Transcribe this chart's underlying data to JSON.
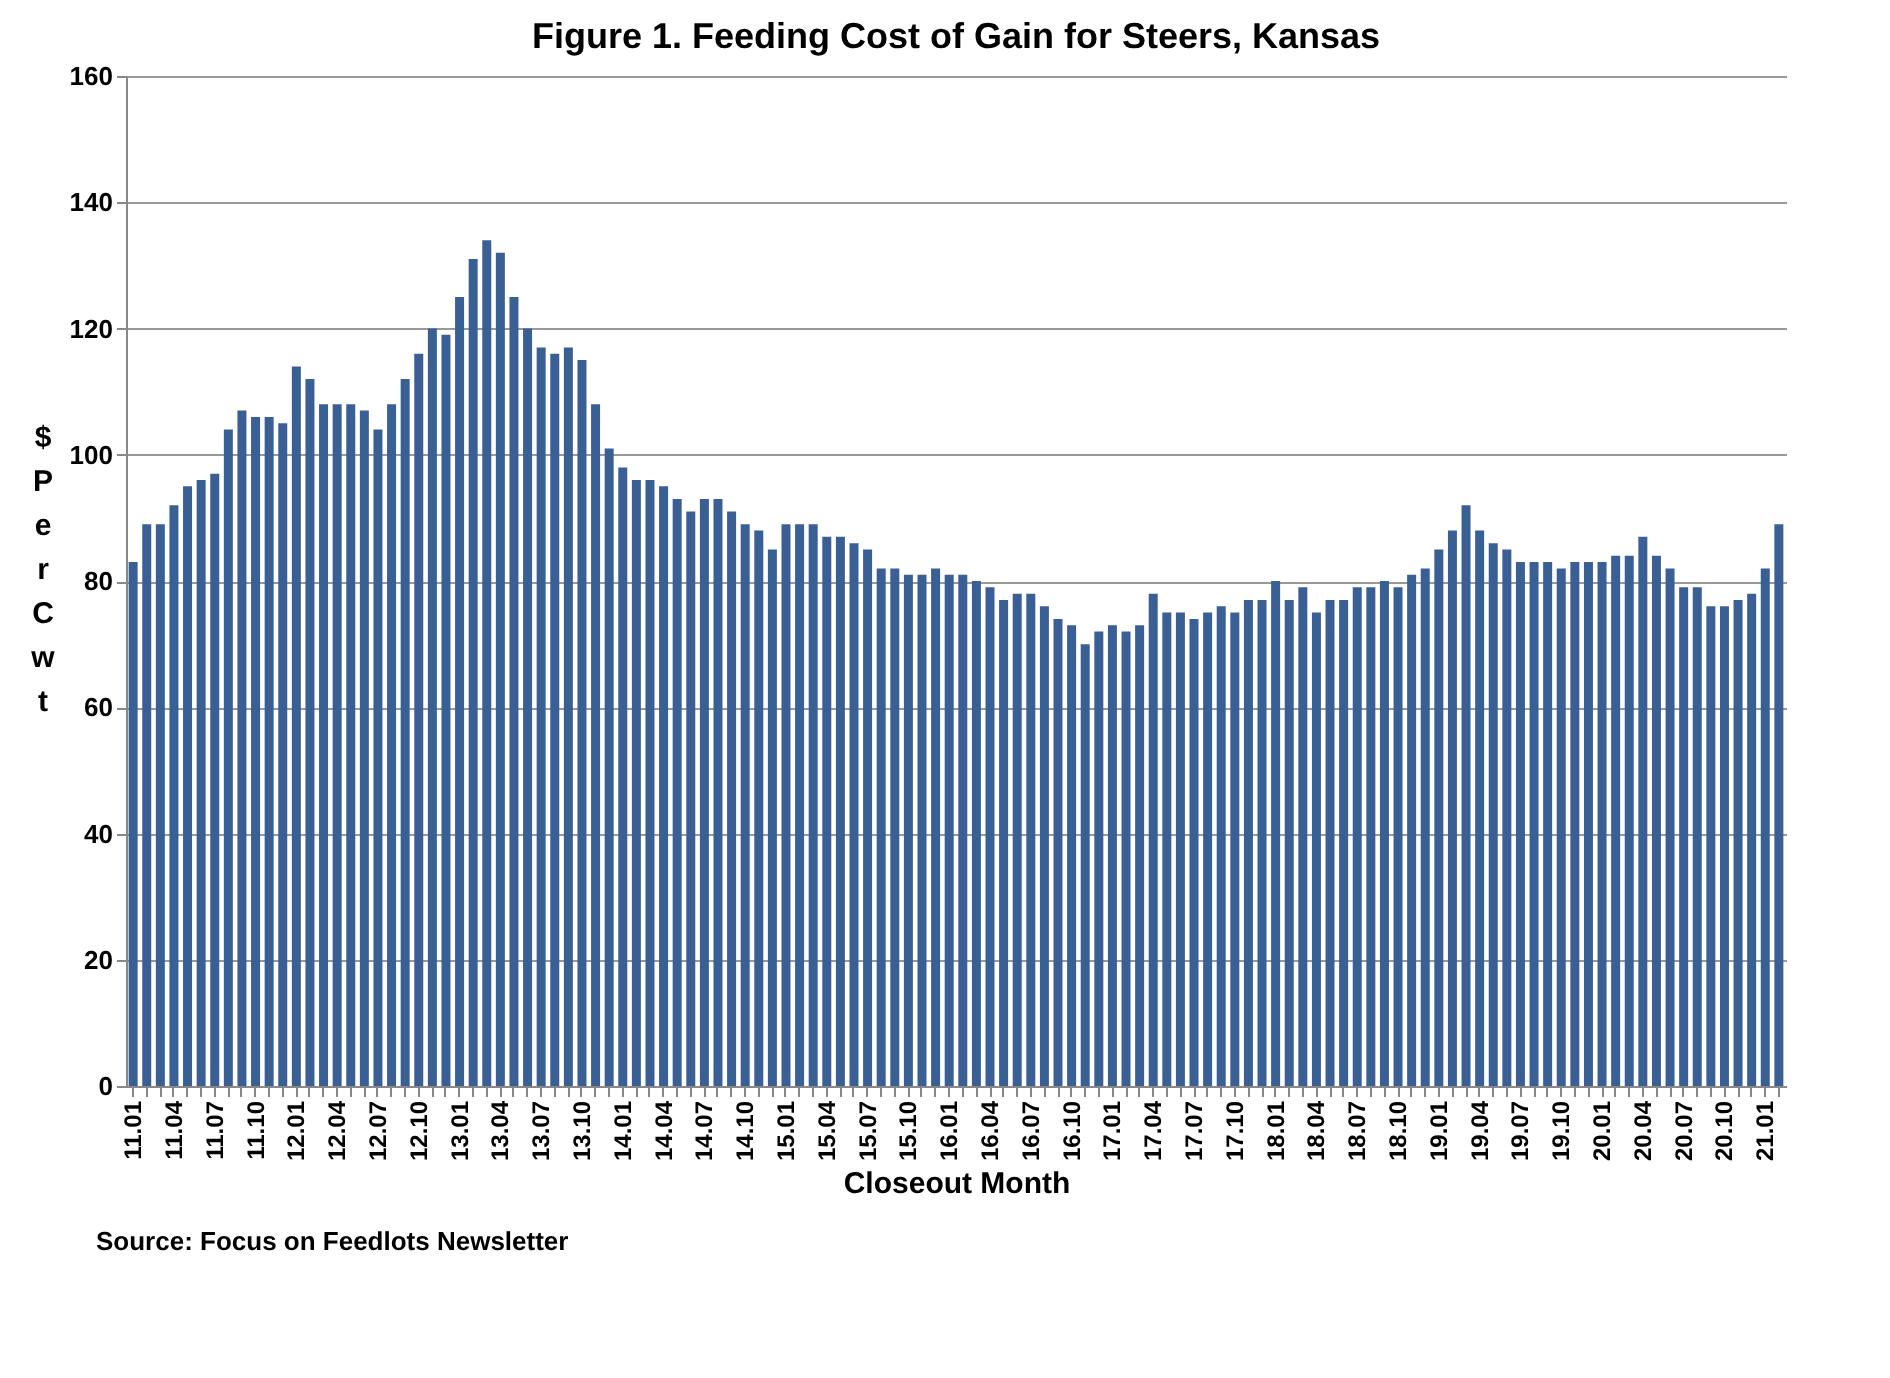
{
  "chart_data": {
    "type": "bar",
    "title": "Figure 1.  Feeding Cost of Gain for Steers, Kansas",
    "xlabel": "Closeout Month",
    "ylabel": "$ Per Cwt",
    "categories": [
      "11.01",
      null,
      null,
      "11.04",
      null,
      null,
      "11.07",
      null,
      null,
      "11.10",
      null,
      null,
      "12.01",
      null,
      null,
      "12.04",
      null,
      null,
      "12.07",
      null,
      null,
      "12.10",
      null,
      null,
      "13.01",
      null,
      null,
      "13.04",
      null,
      null,
      "13.07",
      null,
      null,
      "13.10",
      null,
      null,
      "14.01",
      null,
      null,
      "14.04",
      null,
      null,
      "14.07",
      null,
      null,
      "14.10",
      null,
      null,
      "15.01",
      null,
      null,
      "15.04",
      null,
      null,
      "15.07",
      null,
      null,
      "15.10",
      null,
      null,
      "16.01",
      null,
      null,
      "16.04",
      null,
      null,
      "16.07",
      null,
      null,
      "16.10",
      null,
      null,
      "17.01",
      null,
      null,
      "17.04",
      null,
      null,
      "17.07",
      null,
      null,
      "17.10",
      null,
      null,
      "18.01",
      null,
      null,
      "18.04",
      null,
      null,
      "18.07",
      null,
      null,
      "18.10",
      null,
      null,
      "19.01",
      null,
      null,
      "19.04",
      null,
      null,
      "19.07",
      null,
      null,
      "19.10",
      null,
      null,
      "20.01",
      null,
      null,
      "20.04",
      null,
      null,
      "20.07",
      null,
      null,
      "20.10",
      null,
      null,
      "21.01",
      null
    ],
    "values": [
      83,
      89,
      89,
      92,
      95,
      96,
      97,
      104,
      107,
      106,
      106,
      105,
      114,
      112,
      108,
      108,
      108,
      107,
      104,
      108,
      112,
      116,
      120,
      119,
      125,
      131,
      134,
      132,
      125,
      120,
      117,
      116,
      117,
      115,
      108,
      101,
      98,
      96,
      96,
      95,
      93,
      91,
      93,
      93,
      91,
      89,
      88,
      85,
      89,
      89,
      89,
      87,
      87,
      86,
      85,
      82,
      82,
      81,
      81,
      82,
      81,
      81,
      80,
      79,
      77,
      78,
      78,
      76,
      74,
      73,
      70,
      72,
      73,
      72,
      73,
      78,
      75,
      75,
      74,
      75,
      76,
      75,
      77,
      77,
      80,
      77,
      79,
      75,
      77,
      77,
      79,
      79,
      80,
      79,
      81,
      82,
      85,
      88,
      92,
      88,
      86,
      85,
      83,
      83,
      83,
      82,
      83,
      83,
      83,
      84,
      84,
      87,
      84,
      82,
      79,
      79,
      76,
      76,
      77,
      78,
      82,
      89
    ],
    "color": "#3a5f94",
    "ylim": [
      0,
      160
    ],
    "yticks": [
      0,
      20,
      40,
      60,
      80,
      100,
      120,
      140,
      160
    ],
    "grid": "y",
    "annotations": [
      "Source:  Focus on Feedlots Newsletter"
    ]
  }
}
